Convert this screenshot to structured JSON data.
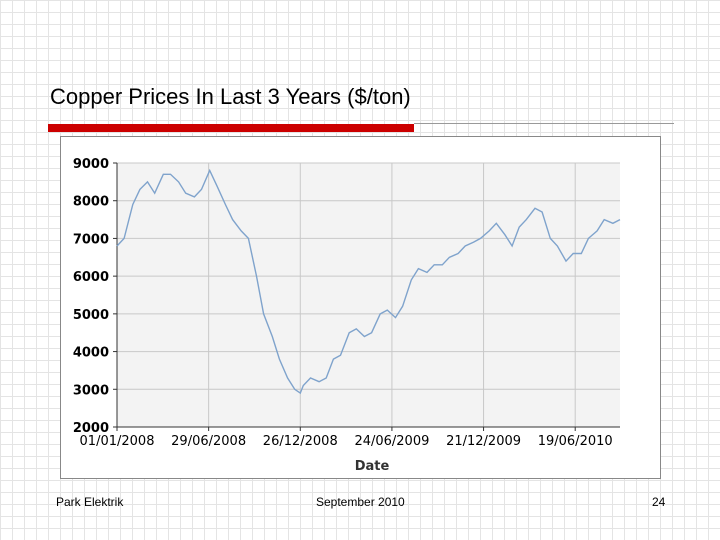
{
  "slide": {
    "title": "Copper Prices In Last 3 Years ($/ton)",
    "accent_color": "#cc0000",
    "footer_left": "Park Elektrik",
    "footer_center": "September 2010",
    "page_number": "24"
  },
  "chart_data": {
    "type": "line",
    "title": "",
    "xlabel": "Date",
    "ylabel": "",
    "xlim": [
      "01/01/2008",
      "15/09/2010"
    ],
    "ylim": [
      2000,
      9000
    ],
    "x_ticks": [
      "01/01/2008",
      "29/06/2008",
      "26/12/2008",
      "24/06/2009",
      "21/12/2009",
      "19/06/2010"
    ],
    "y_ticks": [
      "2000",
      "3000",
      "4000",
      "5000",
      "6000",
      "7000",
      "8000",
      "9000"
    ],
    "grid": true,
    "line_color": "#7fa3cc",
    "series": [
      {
        "x": [
          "01/01/2008",
          "15/01/2008",
          "01/02/2008",
          "15/02/2008",
          "01/03/2008",
          "15/03/2008",
          "01/04/2008",
          "15/04/2008",
          "01/05/2008",
          "15/05/2008",
          "01/06/2008",
          "15/06/2008",
          "01/07/2008",
          "15/07/2008",
          "01/08/2008",
          "15/08/2008",
          "01/09/2008",
          "15/09/2008",
          "01/10/2008",
          "15/10/2008",
          "01/11/2008",
          "15/11/2008",
          "01/12/2008",
          "15/12/2008",
          "26/12/2008",
          "01/01/2009",
          "15/01/2009",
          "01/02/2009",
          "15/02/2009",
          "01/03/2009",
          "15/03/2009",
          "01/04/2009",
          "15/04/2009",
          "01/05/2009",
          "15/05/2009",
          "01/06/2009",
          "15/06/2009",
          "01/07/2009",
          "15/07/2009",
          "01/08/2009",
          "15/08/2009",
          "01/09/2009",
          "15/09/2009",
          "01/10/2009",
          "15/10/2009",
          "01/11/2009",
          "15/11/2009",
          "01/12/2009",
          "15/12/2009",
          "01/01/2010",
          "15/01/2010",
          "01/02/2010",
          "15/02/2010",
          "01/03/2010",
          "15/03/2010",
          "01/04/2010",
          "15/04/2010",
          "01/05/2010",
          "15/05/2010",
          "01/06/2010",
          "15/06/2010",
          "01/07/2010",
          "15/07/2010",
          "01/08/2010",
          "15/08/2010",
          "01/09/2010",
          "15/09/2010"
        ],
        "values": [
          6800,
          7000,
          7900,
          8300,
          8500,
          8200,
          8700,
          8700,
          8500,
          8200,
          8100,
          8300,
          8800,
          8400,
          7900,
          7500,
          7200,
          7000,
          6000,
          5000,
          4400,
          3800,
          3300,
          3000,
          2900,
          3100,
          3300,
          3200,
          3300,
          3800,
          3900,
          4500,
          4600,
          4400,
          4500,
          5000,
          5100,
          4900,
          5200,
          5900,
          6200,
          6100,
          6300,
          6300,
          6500,
          6600,
          6800,
          6900,
          7000,
          7200,
          7400,
          7100,
          6800,
          7300,
          7500,
          7800,
          7700,
          7000,
          6800,
          6400,
          6600,
          6600,
          7000,
          7200,
          7500,
          7400,
          7500
        ]
      }
    ]
  }
}
